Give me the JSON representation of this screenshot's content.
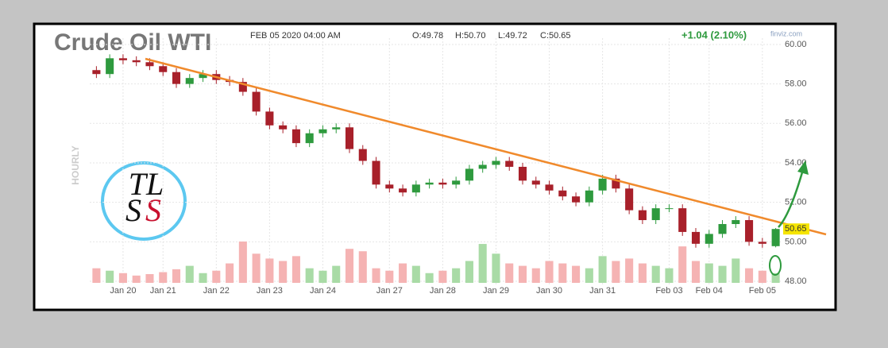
{
  "chart_data": {
    "type": "candlestick",
    "title": "Crude Oil WTI",
    "timestamp": "FEB 05 2020 04:00 AM",
    "ohlc_labels": [
      "O:49.78",
      "H:50.70",
      "L:49.72",
      "C:50.65"
    ],
    "change": "+1.04 (2.10%)",
    "source": "finviz.com",
    "y_label": "HOURLY",
    "logo": {
      "top": "TL",
      "bottom_left": "S",
      "bottom_right": "S"
    },
    "categories": [
      null,
      null,
      "Jan 20",
      null,
      null,
      "Jan 21",
      null,
      null,
      null,
      "Jan 22",
      null,
      null,
      null,
      "Jan 23",
      null,
      null,
      null,
      "Jan 24",
      null,
      null,
      null,
      null,
      "Jan 27",
      null,
      null,
      null,
      "Jan 28",
      null,
      null,
      null,
      "Jan 29",
      null,
      null,
      null,
      "Jan 30",
      null,
      null,
      null,
      "Jan 31",
      null,
      null,
      null,
      null,
      "Feb 03",
      null,
      null,
      "Feb 04",
      null,
      null,
      null,
      "Feb 05",
      null
    ],
    "open": [
      58.7,
      58.5,
      59.3,
      59.2,
      59.1,
      58.9,
      58.6,
      58.0,
      58.3,
      58.5,
      58.2,
      58.1,
      57.6,
      56.6,
      55.9,
      55.7,
      55.0,
      55.5,
      55.7,
      55.8,
      54.7,
      54.1,
      52.9,
      52.7,
      52.5,
      52.9,
      53.0,
      52.9,
      53.1,
      53.7,
      53.9,
      54.1,
      53.8,
      53.1,
      52.9,
      52.6,
      52.3,
      52.0,
      52.6,
      53.2,
      52.7,
      51.6,
      51.1,
      51.7,
      51.7,
      50.5,
      49.9,
      50.4,
      50.9,
      51.1,
      50.0,
      49.78
    ],
    "high": [
      58.9,
      59.5,
      59.5,
      59.4,
      59.3,
      59.1,
      58.8,
      58.5,
      58.7,
      58.7,
      58.4,
      58.3,
      57.8,
      56.8,
      56.1,
      55.9,
      55.7,
      55.9,
      56.0,
      56.0,
      54.9,
      54.3,
      53.1,
      52.9,
      53.1,
      53.2,
      53.2,
      53.3,
      53.9,
      54.1,
      54.3,
      54.3,
      54.0,
      53.3,
      53.1,
      52.8,
      52.5,
      52.8,
      53.4,
      53.4,
      52.9,
      51.8,
      51.9,
      51.9,
      51.9,
      50.7,
      50.6,
      51.1,
      51.3,
      51.3,
      50.2,
      50.7
    ],
    "low": [
      58.3,
      58.3,
      59.0,
      58.9,
      58.7,
      58.4,
      57.8,
      57.8,
      58.1,
      58.0,
      57.9,
      57.4,
      56.4,
      55.7,
      55.5,
      54.8,
      54.8,
      55.3,
      55.5,
      54.5,
      53.9,
      52.7,
      52.5,
      52.3,
      52.3,
      52.7,
      52.7,
      52.7,
      52.9,
      53.5,
      53.7,
      53.6,
      52.9,
      52.7,
      52.4,
      52.1,
      51.8,
      51.8,
      52.4,
      52.5,
      51.4,
      50.9,
      50.9,
      51.5,
      50.3,
      49.7,
      49.7,
      50.2,
      50.7,
      49.8,
      49.7,
      49.72
    ],
    "close": [
      58.5,
      59.3,
      59.2,
      59.1,
      58.9,
      58.6,
      58.0,
      58.3,
      58.5,
      58.2,
      58.1,
      57.6,
      56.6,
      55.9,
      55.7,
      55.0,
      55.5,
      55.7,
      55.8,
      54.7,
      54.1,
      52.9,
      52.7,
      52.5,
      52.9,
      53.0,
      52.9,
      53.1,
      53.7,
      53.9,
      54.1,
      53.8,
      53.1,
      52.9,
      52.6,
      52.3,
      52.0,
      52.6,
      53.2,
      52.7,
      51.6,
      51.1,
      51.7,
      51.7,
      50.5,
      49.9,
      50.4,
      50.9,
      51.1,
      50.0,
      49.9,
      50.65
    ],
    "volume": [
      30,
      25,
      20,
      15,
      18,
      22,
      28,
      35,
      20,
      25,
      40,
      85,
      60,
      50,
      45,
      55,
      30,
      25,
      35,
      70,
      65,
      30,
      25,
      40,
      35,
      20,
      25,
      30,
      45,
      80,
      60,
      40,
      35,
      30,
      45,
      40,
      35,
      30,
      55,
      45,
      50,
      40,
      35,
      30,
      75,
      45,
      40,
      35,
      50,
      30,
      25,
      20
    ],
    "up_color": "#2e9a3e",
    "down_color": "#a8202a",
    "volume_up_color": "#a9dba6",
    "volume_down_color": "#f5b3b3",
    "trendline_color": "#f08a2c",
    "ylim": [
      47.84,
      60.32
    ],
    "yticks": [
      {
        "value": 48,
        "label": "48.00"
      },
      {
        "value": 50,
        "label": "50.00"
      },
      {
        "value": 52,
        "label": "52.00"
      },
      {
        "value": 54,
        "label": "54.00"
      },
      {
        "value": 56,
        "label": "56.00"
      },
      {
        "value": 58,
        "label": "58.00"
      },
      {
        "value": 60,
        "label": "60.00"
      }
    ],
    "grid": true
  }
}
